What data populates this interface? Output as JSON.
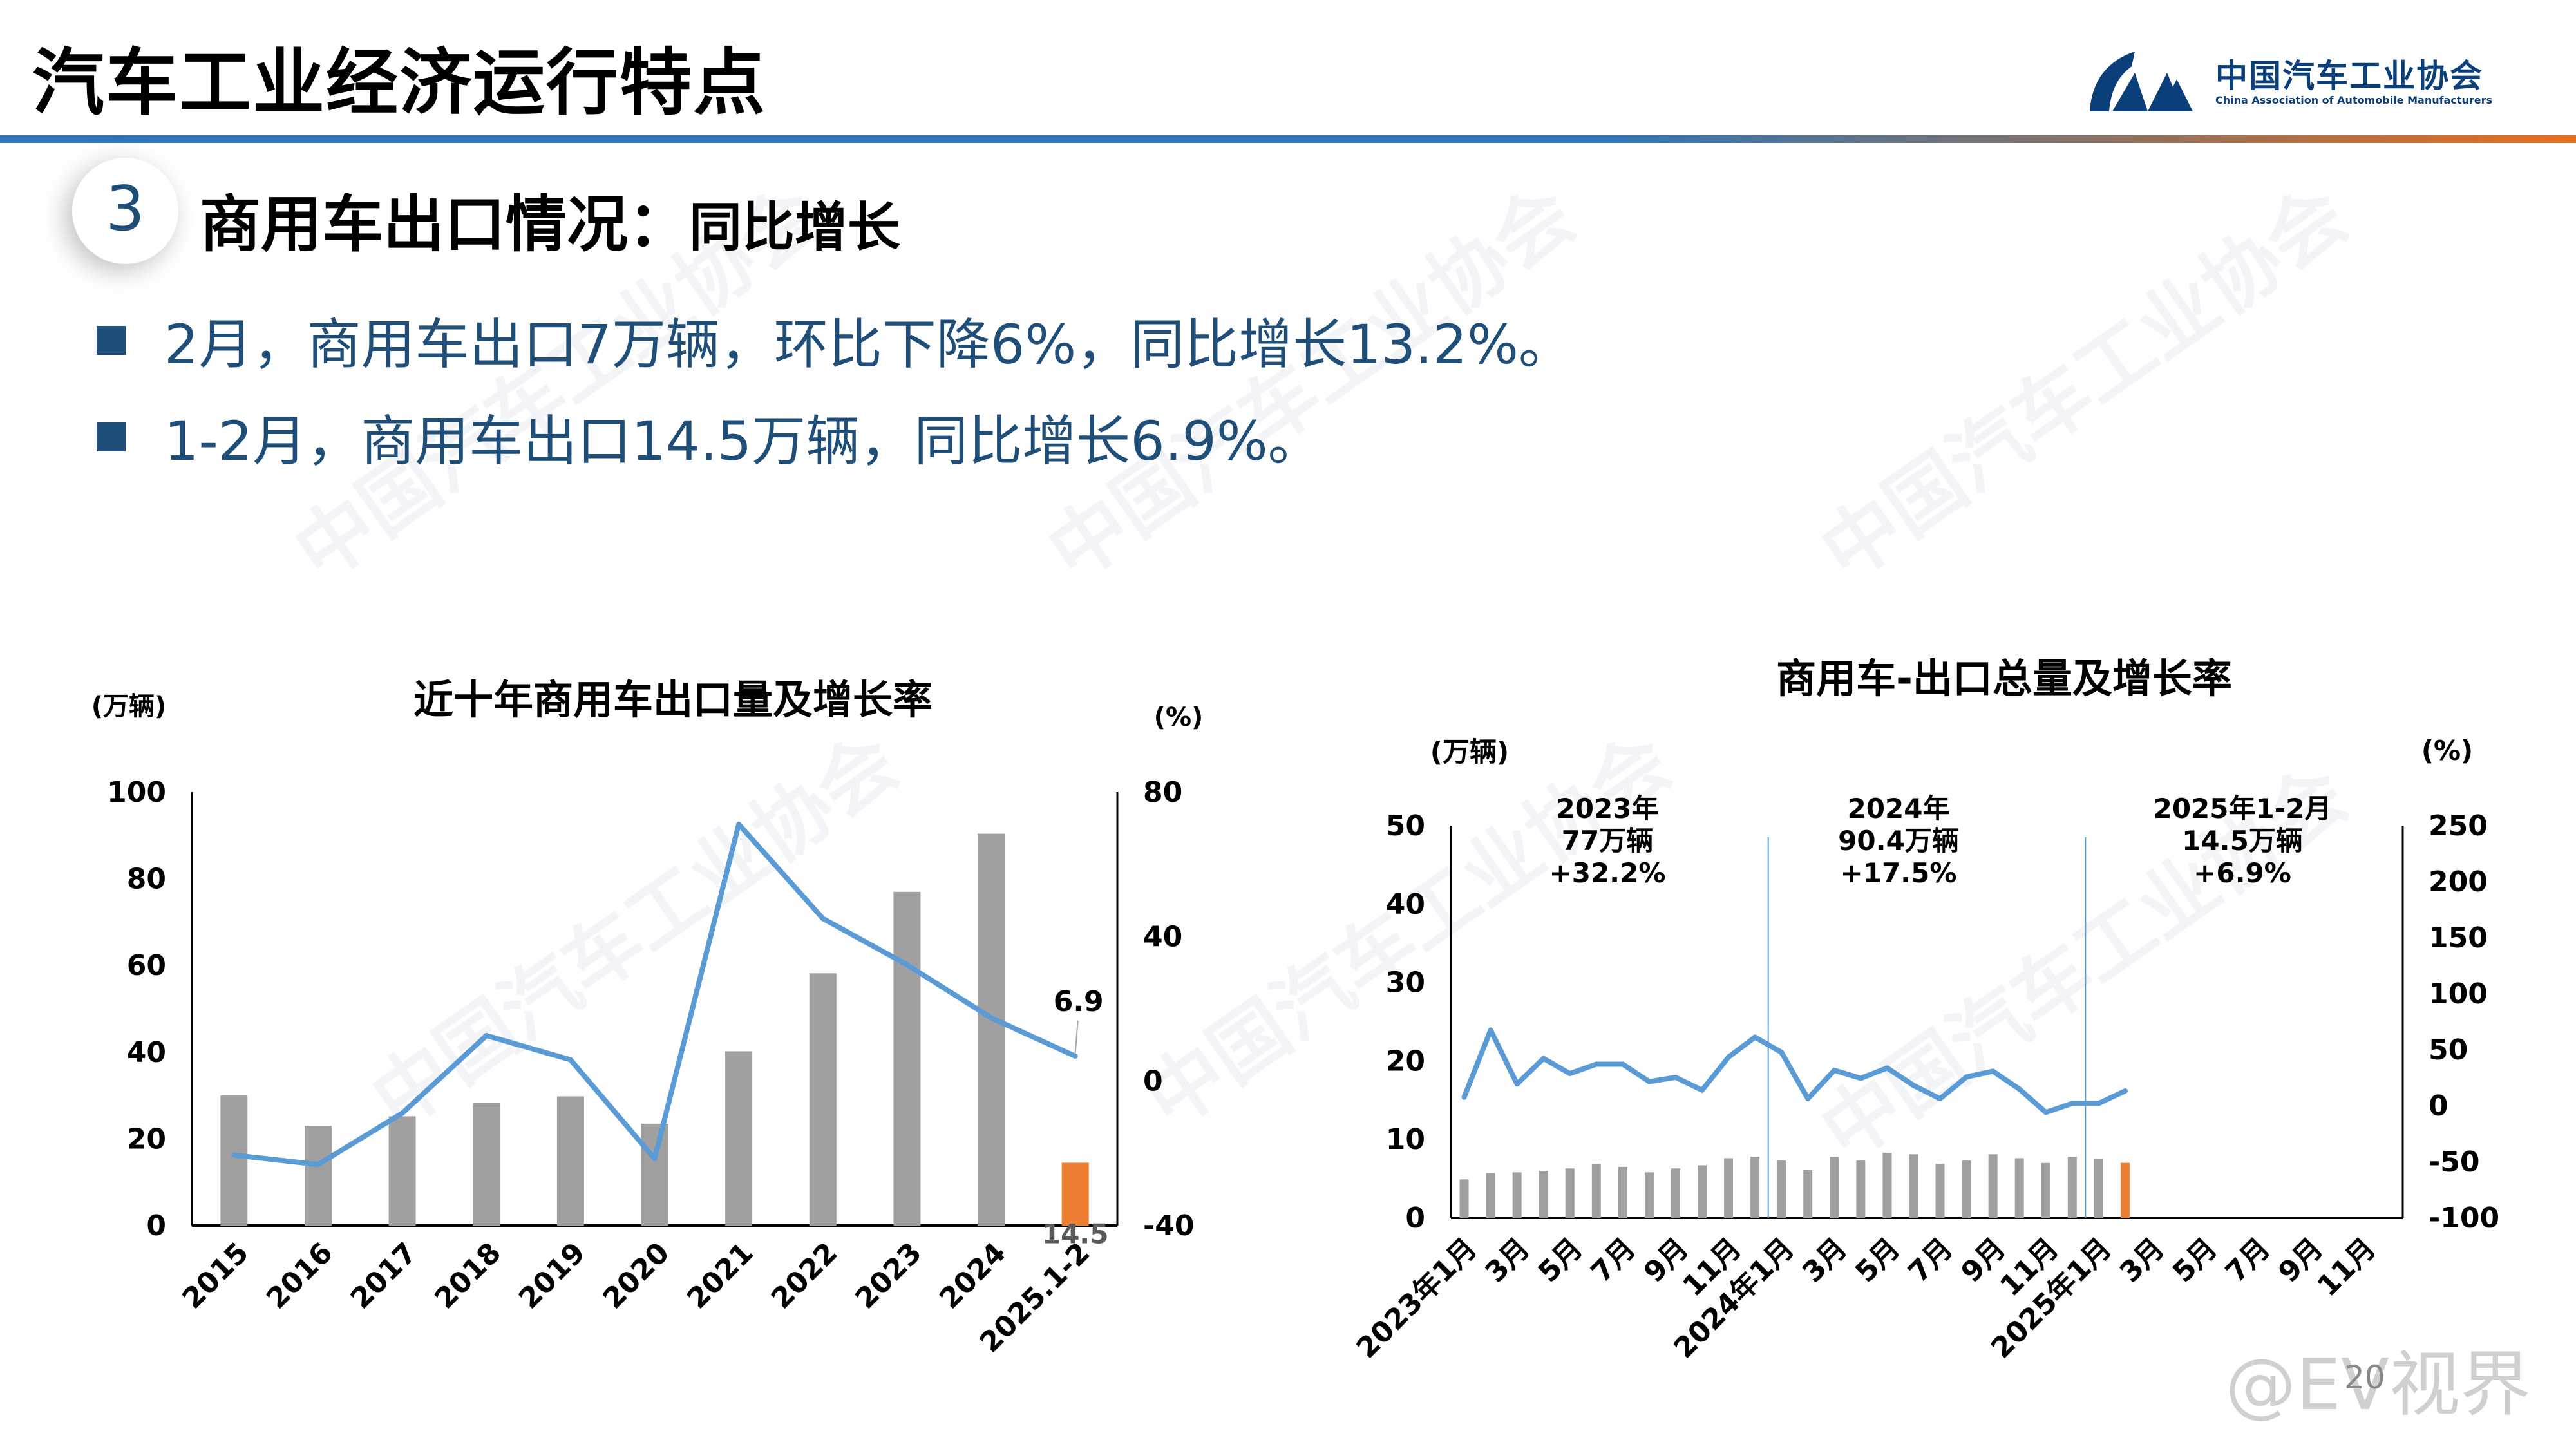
{
  "header": {
    "title": "汽车工业经济运行特点",
    "logo_cn": "中国汽车工业协会",
    "logo_en": "China Association of Automobile Manufacturers",
    "bar_colors": [
      "#2e75b6",
      "#e97020"
    ]
  },
  "section": {
    "number": "3",
    "title": "商用车出口情况：",
    "subtitle": "同比增长"
  },
  "bullets": [
    "2月，商用车出口7万辆，环比下降6%，同比增长13.2%。",
    "1-2月，商用车出口14.5万辆，同比增长6.9%。"
  ],
  "watermark": {
    "text": "中国汽车工业协会",
    "text_en": "China Association of Automobile Manufacturers",
    "source": "@EV视界"
  },
  "page_number": "20",
  "chart_data": [
    {
      "type": "bar+line",
      "title": "近十年商用车出口量及增长率",
      "ylabel": "(万辆)",
      "y2label": "(%)",
      "categories": [
        "2015",
        "2016",
        "2017",
        "2018",
        "2019",
        "2020",
        "2021",
        "2022",
        "2023",
        "2024",
        "2025.1-2"
      ],
      "ylim": [
        0,
        100
      ],
      "yticks": [
        "0",
        "20",
        "40",
        "60",
        "80",
        "100"
      ],
      "y2lim": [
        -40,
        80
      ],
      "y2ticks": [
        "-40",
        "0",
        "40",
        "80"
      ],
      "bars": [
        30.0,
        23.0,
        25.2,
        28.3,
        29.8,
        23.5,
        40.2,
        58.2,
        77.0,
        90.4,
        14.5
      ],
      "line": [
        -20.5,
        -23.1,
        -8.9,
        12.6,
        5.9,
        -21.5,
        71.1,
        45.0,
        32.2,
        17.5,
        6.9
      ],
      "bar_color": "#a0a0a0",
      "highlight_color": "#ed7d31",
      "line_color": "#5b9bd5",
      "labels": {
        "bar_last": "14.5",
        "line_last": "6.9"
      }
    },
    {
      "type": "bar+line",
      "title": "商用车-出口总量及增长率",
      "ylabel": "(万辆)",
      "y2label": "(%)",
      "ylim": [
        0,
        50
      ],
      "yticks": [
        "0",
        "10",
        "20",
        "30",
        "40",
        "50"
      ],
      "y2lim": [
        -100,
        250
      ],
      "y2ticks": [
        "-100",
        "-50",
        "0",
        "50",
        "100",
        "150",
        "200",
        "250"
      ],
      "xticklabels": [
        "2023年1月",
        "3月",
        "5月",
        "7月",
        "9月",
        "11月",
        "2024年1月",
        "3月",
        "5月",
        "7月",
        "9月",
        "11月",
        "2025年1月",
        "3月",
        "5月",
        "7月",
        "9月",
        "11月"
      ],
      "months": 36,
      "bars": [
        4.9,
        5.7,
        5.8,
        6.0,
        6.3,
        6.9,
        6.5,
        5.8,
        6.3,
        6.7,
        7.6,
        7.8,
        7.3,
        6.1,
        7.8,
        7.3,
        8.3,
        8.1,
        6.9,
        7.3,
        8.1,
        7.6,
        7.0,
        7.8,
        7.5,
        7.0
      ],
      "line": [
        7.6,
        67.5,
        19.4,
        42.2,
        28.7,
        37.1,
        37.1,
        21.5,
        25.3,
        13.9,
        43.4,
        61.2,
        47.7,
        6.3,
        31.6,
        24.5,
        33.7,
        18.1,
        6.3,
        25.7,
        30.8,
        14.8,
        -5.9,
        2.1,
        2.1,
        13.2
      ],
      "bar_color": "#a0a0a0",
      "highlight_color": "#ed7d31",
      "line_color": "#5b9bd5",
      "annotations": [
        [
          "2023年",
          "77万辆",
          "+32.2%"
        ],
        [
          "2024年",
          "90.4万辆",
          "+17.5%"
        ],
        [
          "2025年1-2月",
          "14.5万辆",
          "+6.9%"
        ]
      ]
    }
  ]
}
